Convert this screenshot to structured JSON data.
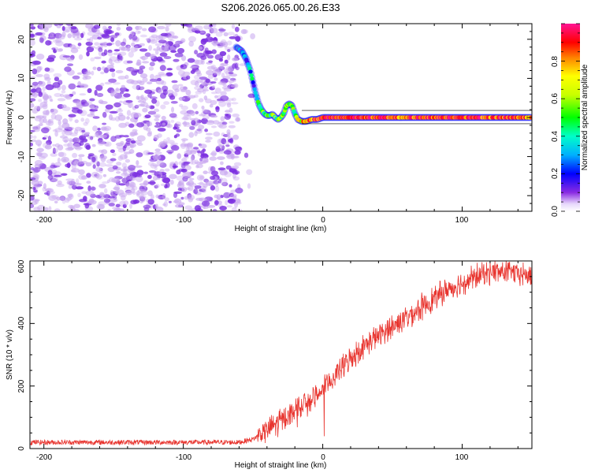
{
  "figure": {
    "title": "S206.2026.065.00.26.E33"
  },
  "colors": {
    "snr_line": "#e8342e",
    "ridge_outline": "#1a1aff",
    "noise_blob": "#7b2ee0",
    "noise_blob_light": "#c9a8f0"
  },
  "chart_data": [
    {
      "type": "heatmap",
      "name": "spectrogram",
      "xlabel": "Height of straight line (km)",
      "ylabel": "Frequency (Hz)",
      "xlim": [
        -210,
        150
      ],
      "ylim": [
        -24,
        24
      ],
      "xticks": [
        -200,
        -100,
        0,
        100
      ],
      "xtick_labels": [
        "-200",
        "-100",
        "0",
        "100"
      ],
      "yticks": [
        -20,
        -10,
        0,
        10,
        20
      ],
      "ytick_labels": [
        "-20",
        "-10",
        "0",
        "10",
        "20"
      ],
      "colorbar": {
        "label": "Normalized spectral amplitude",
        "range": [
          0.0,
          1.0
        ],
        "ticks": [
          0.0,
          0.2,
          0.4,
          0.6,
          0.8
        ],
        "tick_labels": [
          "0.0",
          "0.2",
          "0.4",
          "0.6",
          "0.8"
        ],
        "colormap": "rainbow"
      },
      "ridge": {
        "x": [
          -62,
          -58,
          -55,
          -52,
          -50,
          -48,
          -46,
          -44,
          -42,
          -40,
          -38,
          -36,
          -34,
          -32,
          -30,
          -28,
          -26,
          -24,
          -22,
          -20,
          -18,
          -15,
          -12,
          -8,
          -4,
          0,
          20,
          60,
          100,
          150
        ],
        "y": [
          18,
          17,
          15,
          12,
          9,
          6,
          3.5,
          2,
          1,
          0.5,
          0.5,
          0.8,
          0,
          -0.5,
          0,
          1,
          3,
          3.5,
          3,
          1,
          -0.5,
          -1,
          -1,
          -0.5,
          -0.5,
          0,
          0,
          0,
          0,
          0
        ],
        "amplitude": [
          0.15,
          0.2,
          0.25,
          0.3,
          0.3,
          0.35,
          0.4,
          0.45,
          0.5,
          0.5,
          0.55,
          0.5,
          0.55,
          0.5,
          0.55,
          0.5,
          0.55,
          0.6,
          0.55,
          0.5,
          0.6,
          0.7,
          0.8,
          0.8,
          0.85,
          0.9,
          0.95,
          0.85,
          0.95,
          0.8
        ]
      },
      "noise_region": {
        "x_range": [
          -210,
          -50
        ],
        "y_range": [
          -24,
          24
        ]
      }
    },
    {
      "type": "line",
      "name": "snr",
      "xlabel": "Height of straight line (km)",
      "ylabel": "SNR (10 * v/v)",
      "xlim": [
        -210,
        150
      ],
      "ylim": [
        0,
        600
      ],
      "xticks": [
        -200,
        -100,
        0,
        100
      ],
      "xtick_labels": [
        "-200",
        "-100",
        "0",
        "100"
      ],
      "yticks": [
        0,
        200,
        400,
        600
      ],
      "ytick_labels": [
        "0",
        "200",
        "400",
        "600"
      ],
      "trend": {
        "x": [
          -210,
          -100,
          -60,
          -50,
          -40,
          -30,
          -20,
          -10,
          0,
          10,
          20,
          30,
          40,
          50,
          60,
          70,
          80,
          90,
          100,
          110,
          120,
          130,
          140,
          150
        ],
        "y": [
          20,
          20,
          20,
          30,
          60,
          90,
          120,
          150,
          190,
          240,
          290,
          330,
          360,
          390,
          420,
          450,
          480,
          510,
          530,
          550,
          565,
          565,
          560,
          550
        ]
      },
      "noise_amplitude": [
        8,
        30
      ]
    }
  ]
}
